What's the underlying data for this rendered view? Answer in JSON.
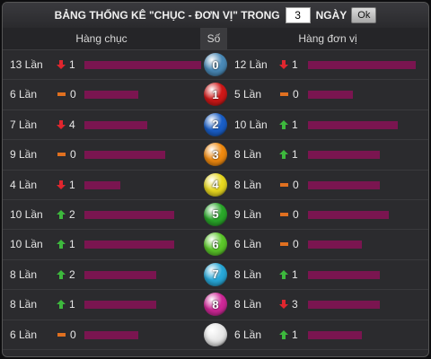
{
  "header": {
    "title_prefix": "BẢNG THỐNG KÊ \"CHỤC - ĐƠN VỊ\" TRONG",
    "days_value": "3",
    "days_label": "NGÀY",
    "ok_label": "Ok"
  },
  "columns": {
    "tens": "Hàng chục",
    "number": "Số",
    "units": "Hàng đơn vị"
  },
  "colors": {
    "bar": "#7a1550",
    "up": "#3db83d",
    "down": "#e0262e",
    "same": "#e07020"
  },
  "rows": [
    {
      "number": "0",
      "ball_color": "#4a8ab8",
      "tens": {
        "count": "13 Lần",
        "trend": "down",
        "delta": "1",
        "bar": 13
      },
      "units": {
        "count": "12 Lần",
        "trend": "down",
        "delta": "1",
        "bar": 12
      }
    },
    {
      "number": "1",
      "ball_color": "#d01818",
      "tens": {
        "count": "6 Lần",
        "trend": "same",
        "delta": "0",
        "bar": 6
      },
      "units": {
        "count": "5 Lần",
        "trend": "same",
        "delta": "0",
        "bar": 5
      }
    },
    {
      "number": "2",
      "ball_color": "#1a5fc8",
      "tens": {
        "count": "7 Lần",
        "trend": "down",
        "delta": "4",
        "bar": 7
      },
      "units": {
        "count": "10 Lần",
        "trend": "up",
        "delta": "1",
        "bar": 10
      }
    },
    {
      "number": "3",
      "ball_color": "#f08a10",
      "tens": {
        "count": "9 Lần",
        "trend": "same",
        "delta": "0",
        "bar": 9
      },
      "units": {
        "count": "8 Lần",
        "trend": "up",
        "delta": "1",
        "bar": 8
      }
    },
    {
      "number": "4",
      "ball_color": "#e8d820",
      "tens": {
        "count": "4 Lần",
        "trend": "down",
        "delta": "1",
        "bar": 4
      },
      "units": {
        "count": "8 Lần",
        "trend": "same",
        "delta": "0",
        "bar": 8
      }
    },
    {
      "number": "5",
      "ball_color": "#2aa82a",
      "tens": {
        "count": "10 Lần",
        "trend": "up",
        "delta": "2",
        "bar": 10
      },
      "units": {
        "count": "9 Lần",
        "trend": "same",
        "delta": "0",
        "bar": 9
      }
    },
    {
      "number": "6",
      "ball_color": "#5cc82a",
      "tens": {
        "count": "10 Lần",
        "trend": "up",
        "delta": "1",
        "bar": 10
      },
      "units": {
        "count": "6 Lần",
        "trend": "same",
        "delta": "0",
        "bar": 6
      }
    },
    {
      "number": "7",
      "ball_color": "#28a8d8",
      "tens": {
        "count": "8 Lần",
        "trend": "up",
        "delta": "2",
        "bar": 8
      },
      "units": {
        "count": "8 Lần",
        "trend": "up",
        "delta": "1",
        "bar": 8
      }
    },
    {
      "number": "8",
      "ball_color": "#d02898",
      "tens": {
        "count": "8 Lần",
        "trend": "up",
        "delta": "1",
        "bar": 8
      },
      "units": {
        "count": "8 Lần",
        "trend": "down",
        "delta": "3",
        "bar": 8
      }
    },
    {
      "number": "",
      "ball_color": "#e8e8e8",
      "tens": {
        "count": "6 Lần",
        "trend": "same",
        "delta": "0",
        "bar": 6
      },
      "units": {
        "count": "6 Lần",
        "trend": "up",
        "delta": "1",
        "bar": 6
      }
    }
  ]
}
